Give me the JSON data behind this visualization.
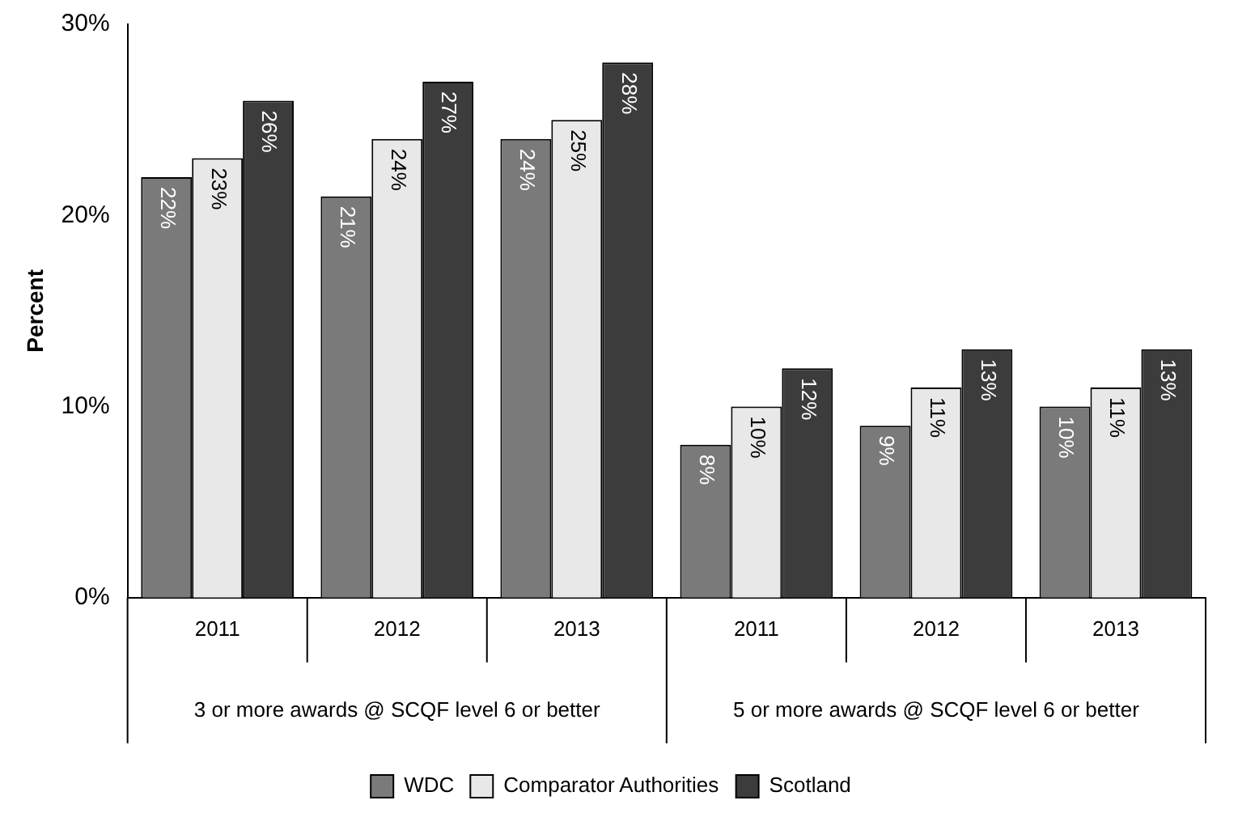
{
  "chart_data": {
    "type": "bar",
    "ylabel": "Percent",
    "categories": [
      "2011",
      "2012",
      "2013",
      "2011",
      "2012",
      "2013"
    ],
    "annotations": [
      "3 or more awards @ SCQF level 6 or better",
      "5 or more awards @ SCQF level 6 or better"
    ],
    "series": [
      {
        "name": "WDC",
        "color": "#7a7a7a",
        "values": [
          22,
          21,
          24,
          8,
          9,
          10
        ],
        "value_labels": [
          "22%",
          "21%",
          "24%",
          "8%",
          "9%",
          "10%"
        ]
      },
      {
        "name": "Comparator Authorities",
        "color": "#e8e8e8",
        "values": [
          23,
          24,
          25,
          10,
          11,
          11
        ],
        "value_labels": [
          "23%",
          "24%",
          "25%",
          "10%",
          "11%",
          "11%"
        ]
      },
      {
        "name": "Scotland",
        "color": "#3c3c3c",
        "values": [
          26,
          27,
          28,
          12,
          13,
          13
        ],
        "value_labels": [
          "26%",
          "27%",
          "28%",
          "12%",
          "13%",
          "13%"
        ]
      }
    ],
    "ylim": [
      0,
      30
    ],
    "yticks": [
      {
        "value": 0,
        "label": "0%"
      },
      {
        "value": 10,
        "label": "10%"
      },
      {
        "value": 20,
        "label": "20%"
      },
      {
        "value": 30,
        "label": "30%"
      }
    ],
    "legend": "bottom",
    "grid": false
  }
}
